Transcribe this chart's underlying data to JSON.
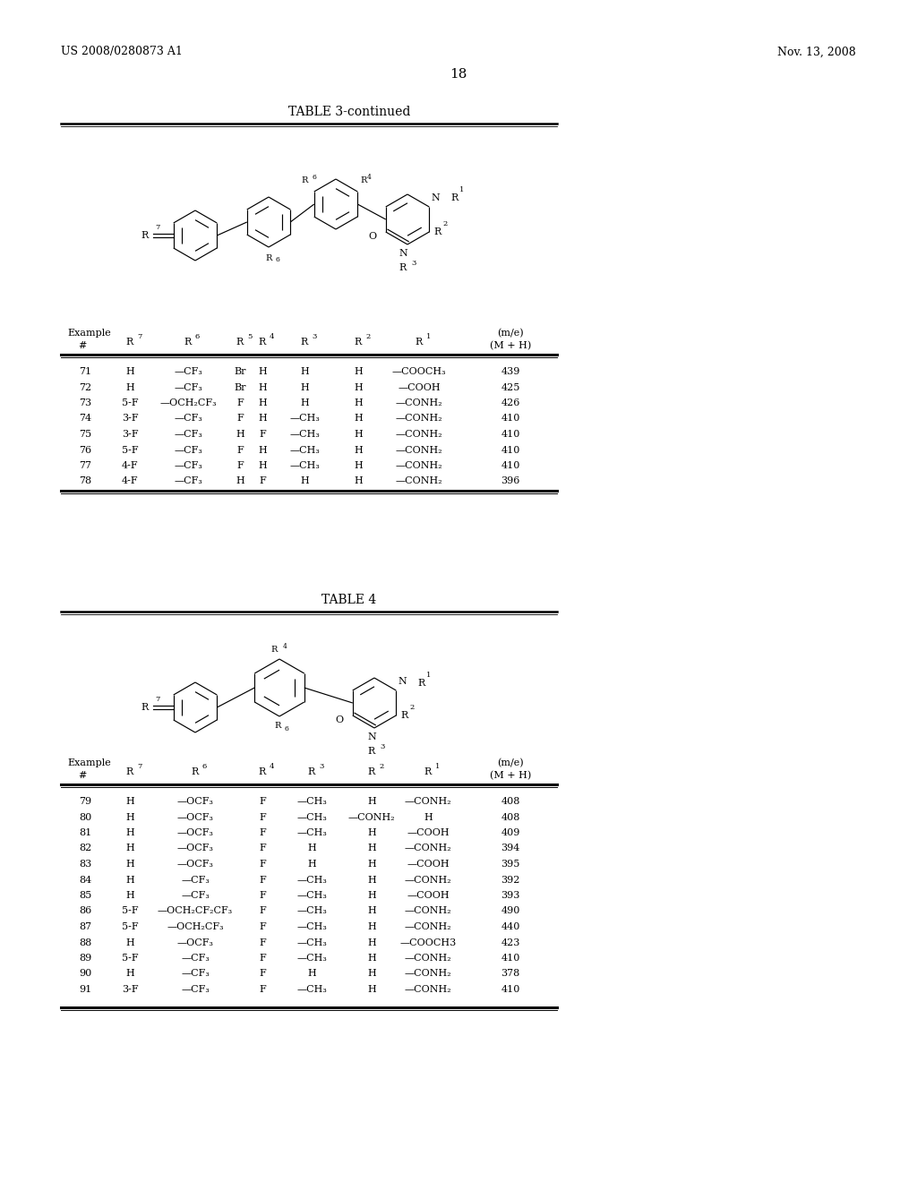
{
  "page_header_left": "US 2008/0280873 A1",
  "page_header_right": "Nov. 13, 2008",
  "page_number": "18",
  "table3_title": "TABLE 3-continued",
  "table4_title": "TABLE 4",
  "table3_rows": [
    [
      "71",
      "H",
      "—CF₃",
      "Br",
      "H",
      "H",
      "H",
      "—COOCH₃",
      "439"
    ],
    [
      "72",
      "H",
      "—CF₃",
      "Br",
      "H",
      "H",
      "H",
      "—COOH",
      "425"
    ],
    [
      "73",
      "5-F",
      "—OCH₂CF₃",
      "F",
      "H",
      "H",
      "H",
      "—CONH₂",
      "426"
    ],
    [
      "74",
      "3-F",
      "—CF₃",
      "F",
      "H",
      "—CH₃",
      "H",
      "—CONH₂",
      "410"
    ],
    [
      "75",
      "3-F",
      "—CF₃",
      "H",
      "F",
      "—CH₃",
      "H",
      "—CONH₂",
      "410"
    ],
    [
      "76",
      "5-F",
      "—CF₃",
      "F",
      "H",
      "—CH₃",
      "H",
      "—CONH₂",
      "410"
    ],
    [
      "77",
      "4-F",
      "—CF₃",
      "F",
      "H",
      "—CH₃",
      "H",
      "—CONH₂",
      "410"
    ],
    [
      "78",
      "4-F",
      "—CF₃",
      "H",
      "F",
      "H",
      "H",
      "—CONH₂",
      "396"
    ]
  ],
  "table4_rows": [
    [
      "79",
      "H",
      "—OCF₃",
      "F",
      "—CH₃",
      "H",
      "—CONH₂",
      "408"
    ],
    [
      "80",
      "H",
      "—OCF₃",
      "F",
      "—CH₃",
      "—CONH₂",
      "H",
      "408"
    ],
    [
      "81",
      "H",
      "—OCF₃",
      "F",
      "—CH₃",
      "H",
      "—COOH",
      "409"
    ],
    [
      "82",
      "H",
      "—OCF₃",
      "F",
      "H",
      "H",
      "—CONH₂",
      "394"
    ],
    [
      "83",
      "H",
      "—OCF₃",
      "F",
      "H",
      "H",
      "—COOH",
      "395"
    ],
    [
      "84",
      "H",
      "—CF₃",
      "F",
      "—CH₃",
      "H",
      "—CONH₂",
      "392"
    ],
    [
      "85",
      "H",
      "—CF₃",
      "F",
      "—CH₃",
      "H",
      "—COOH",
      "393"
    ],
    [
      "86",
      "5-F",
      "—OCH₂CF₂CF₃",
      "F",
      "—CH₃",
      "H",
      "—CONH₂",
      "490"
    ],
    [
      "87",
      "5-F",
      "—OCH₂CF₃",
      "F",
      "—CH₃",
      "H",
      "—CONH₂",
      "440"
    ],
    [
      "88",
      "H",
      "—OCF₃",
      "F",
      "—CH₃",
      "H",
      "—COOCH3",
      "423"
    ],
    [
      "89",
      "5-F",
      "—CF₃",
      "F",
      "—CH₃",
      "H",
      "—CONH₂",
      "410"
    ],
    [
      "90",
      "H",
      "—CF₃",
      "F",
      "H",
      "H",
      "—CONH₂",
      "378"
    ],
    [
      "91",
      "3-F",
      "—CF₃",
      "F",
      "—CH₃",
      "H",
      "—CONH₂",
      "410"
    ]
  ]
}
